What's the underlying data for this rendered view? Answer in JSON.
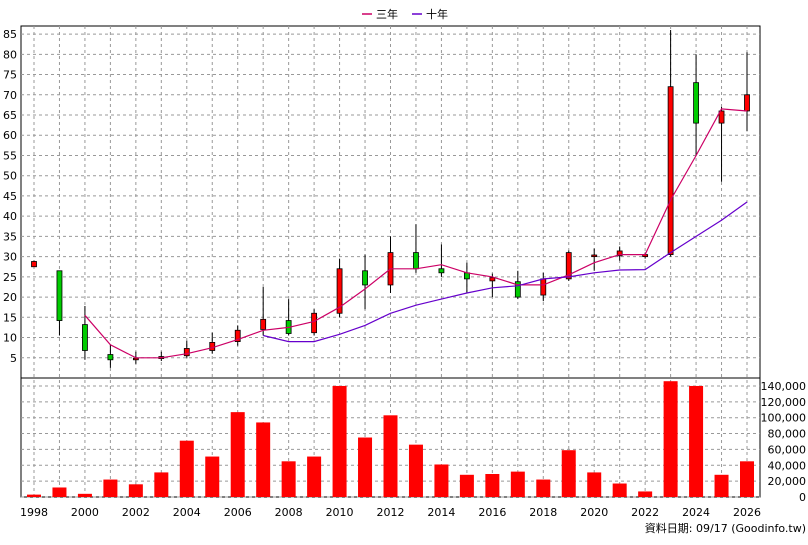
{
  "chart_data": {
    "type": "candlestick",
    "legend": [
      {
        "name": "三年",
        "color": "#cc0066"
      },
      {
        "name": "十年",
        "color": "#6600cc"
      }
    ],
    "legend_position": "top-center",
    "grid": true,
    "price_axis": {
      "ylim": [
        0,
        87
      ],
      "ticks": [
        "5",
        "10",
        "15",
        "20",
        "25",
        "30",
        "35",
        "40",
        "45",
        "50",
        "55",
        "60",
        "65",
        "70",
        "75",
        "80",
        "85"
      ]
    },
    "volume_axis": {
      "ylim": [
        0,
        145000
      ],
      "ticks": [
        "0",
        "20,000",
        "40,000",
        "60,000",
        "80,000",
        "100,000",
        "120,000",
        "140,000"
      ]
    },
    "x_ticks": [
      "1998",
      "2000",
      "2002",
      "2004",
      "2006",
      "2008",
      "2010",
      "2012",
      "2014",
      "2016",
      "2018",
      "2020",
      "2022",
      "2024",
      "2026"
    ],
    "x_range": [
      1998,
      2026
    ],
    "up_color": "#ff0000",
    "down_color": "#00cc00",
    "volume_color": "#ff0000",
    "candles": [
      {
        "year": 1998,
        "open": 27.5,
        "close": 28.8,
        "high": 29,
        "low": 27.5
      },
      {
        "year": 1999,
        "open": 26.5,
        "close": 14.2,
        "high": 26.5,
        "low": 10.5
      },
      {
        "year": 2000,
        "open": 13.2,
        "close": 6.8,
        "high": 17.8,
        "low": 4.5
      },
      {
        "year": 2001,
        "open": 5.8,
        "close": 4.5,
        "high": 8.2,
        "low": 2.5
      },
      {
        "year": 2002,
        "open": 4.5,
        "close": 4.9,
        "high": 6.5,
        "low": 3.5
      },
      {
        "year": 2003,
        "open": 4.8,
        "close": 5.3,
        "high": 6.5,
        "low": 4.2
      },
      {
        "year": 2004,
        "open": 5.5,
        "close": 7.3,
        "high": 9.2,
        "low": 5.0
      },
      {
        "year": 2005,
        "open": 6.8,
        "close": 8.8,
        "high": 11.2,
        "low": 6.0
      },
      {
        "year": 2006,
        "open": 9.0,
        "close": 11.8,
        "high": 13.0,
        "low": 8.0
      },
      {
        "year": 2007,
        "open": 12.0,
        "close": 14.5,
        "high": 22.5,
        "low": 10.5
      },
      {
        "year": 2008,
        "open": 14.2,
        "close": 11.0,
        "high": 19.5,
        "low": 10.5
      },
      {
        "year": 2009,
        "open": 11.2,
        "close": 16.0,
        "high": 17.0,
        "low": 10.5
      },
      {
        "year": 2010,
        "open": 16.0,
        "close": 27.0,
        "high": 29.5,
        "low": 15.0
      },
      {
        "year": 2011,
        "open": 26.5,
        "close": 23.0,
        "high": 30.5,
        "low": 17.0
      },
      {
        "year": 2012,
        "open": 23.0,
        "close": 31.0,
        "high": 35.0,
        "low": 21.0
      },
      {
        "year": 2013,
        "open": 31.0,
        "close": 27.0,
        "high": 38.0,
        "low": 26.0
      },
      {
        "year": 2014,
        "open": 27.0,
        "close": 26.0,
        "high": 33.0,
        "low": 25.0
      },
      {
        "year": 2015,
        "open": 26.0,
        "close": 24.5,
        "high": 28.5,
        "low": 21.0
      },
      {
        "year": 2016,
        "open": 24.0,
        "close": 24.8,
        "high": 25.8,
        "low": 20.0
      },
      {
        "year": 2017,
        "open": 23.8,
        "close": 20.0,
        "high": 26.5,
        "low": 19.5
      },
      {
        "year": 2018,
        "open": 20.5,
        "close": 24.5,
        "high": 26.0,
        "low": 19.0
      },
      {
        "year": 2019,
        "open": 24.5,
        "close": 31.0,
        "high": 31.5,
        "low": 24.0
      },
      {
        "year": 2020,
        "open": 30.0,
        "close": 30.4,
        "high": 32.0,
        "low": 26.5
      },
      {
        "year": 2021,
        "open": 30.2,
        "close": 31.4,
        "high": 32.5,
        "low": 29.0
      },
      {
        "year": 2022,
        "open": 30.0,
        "close": 30.5,
        "high": 31.0,
        "low": 29.5
      },
      {
        "year": 2023,
        "open": 30.5,
        "close": 72.0,
        "high": 86.0,
        "low": 30.0
      },
      {
        "year": 2024,
        "open": 73.0,
        "close": 63.0,
        "high": 80.0,
        "low": 55.0
      },
      {
        "year": 2025,
        "open": 63.0,
        "close": 66.0,
        "high": 67.0,
        "low": 48.5
      },
      {
        "year": 2026,
        "open": 66.0,
        "close": 70.0,
        "high": 80.5,
        "low": 61.0
      }
    ],
    "ma3": [
      {
        "year": 2000,
        "value": 15.5
      },
      {
        "year": 2001,
        "value": 8.2
      },
      {
        "year": 2002,
        "value": 5.0
      },
      {
        "year": 2003,
        "value": 5.0
      },
      {
        "year": 2004,
        "value": 6.0
      },
      {
        "year": 2005,
        "value": 7.5
      },
      {
        "year": 2006,
        "value": 9.5
      },
      {
        "year": 2007,
        "value": 11.8
      },
      {
        "year": 2008,
        "value": 12.5
      },
      {
        "year": 2009,
        "value": 14.0
      },
      {
        "year": 2010,
        "value": 17.5
      },
      {
        "year": 2011,
        "value": 22.0
      },
      {
        "year": 2012,
        "value": 27.0
      },
      {
        "year": 2013,
        "value": 27.0
      },
      {
        "year": 2014,
        "value": 28.0
      },
      {
        "year": 2015,
        "value": 26.0
      },
      {
        "year": 2016,
        "value": 25.0
      },
      {
        "year": 2017,
        "value": 23.0
      },
      {
        "year": 2018,
        "value": 23.0
      },
      {
        "year": 2019,
        "value": 25.5
      },
      {
        "year": 2020,
        "value": 28.5
      },
      {
        "year": 2021,
        "value": 30.5
      },
      {
        "year": 2022,
        "value": 30.5
      },
      {
        "year": 2023,
        "value": 44.0
      },
      {
        "year": 2024,
        "value": 55.0
      },
      {
        "year": 2025,
        "value": 66.5
      },
      {
        "year": 2026,
        "value": 66.0
      }
    ],
    "ma10": [
      {
        "year": 2007,
        "value": 10.5
      },
      {
        "year": 2008,
        "value": 9.0
      },
      {
        "year": 2009,
        "value": 9.0
      },
      {
        "year": 2010,
        "value": 10.8
      },
      {
        "year": 2011,
        "value": 13.0
      },
      {
        "year": 2012,
        "value": 16.0
      },
      {
        "year": 2013,
        "value": 18.0
      },
      {
        "year": 2014,
        "value": 19.5
      },
      {
        "year": 2015,
        "value": 21.0
      },
      {
        "year": 2016,
        "value": 22.3
      },
      {
        "year": 2017,
        "value": 22.8
      },
      {
        "year": 2018,
        "value": 24.5
      },
      {
        "year": 2019,
        "value": 25.0
      },
      {
        "year": 2020,
        "value": 26.0
      },
      {
        "year": 2021,
        "value": 26.7
      },
      {
        "year": 2022,
        "value": 26.8
      },
      {
        "year": 2023,
        "value": 31.0
      },
      {
        "year": 2024,
        "value": 35.0
      },
      {
        "year": 2025,
        "value": 39.0
      },
      {
        "year": 2026,
        "value": 43.5
      }
    ],
    "volumes": [
      {
        "year": 1998,
        "value": 3000
      },
      {
        "year": 1999,
        "value": 12000
      },
      {
        "year": 2000,
        "value": 4000
      },
      {
        "year": 2001,
        "value": 22000
      },
      {
        "year": 2002,
        "value": 16000
      },
      {
        "year": 2003,
        "value": 31000
      },
      {
        "year": 2004,
        "value": 71000
      },
      {
        "year": 2005,
        "value": 51000
      },
      {
        "year": 2006,
        "value": 107000
      },
      {
        "year": 2007,
        "value": 94000
      },
      {
        "year": 2008,
        "value": 45000
      },
      {
        "year": 2009,
        "value": 51000
      },
      {
        "year": 2010,
        "value": 140000
      },
      {
        "year": 2011,
        "value": 75000
      },
      {
        "year": 2012,
        "value": 103000
      },
      {
        "year": 2013,
        "value": 66000
      },
      {
        "year": 2014,
        "value": 41000
      },
      {
        "year": 2015,
        "value": 28000
      },
      {
        "year": 2016,
        "value": 29000
      },
      {
        "year": 2017,
        "value": 32000
      },
      {
        "year": 2018,
        "value": 22000
      },
      {
        "year": 2019,
        "value": 59000
      },
      {
        "year": 2020,
        "value": 31000
      },
      {
        "year": 2021,
        "value": 17000
      },
      {
        "year": 2022,
        "value": 7000
      },
      {
        "year": 2023,
        "value": 146000
      },
      {
        "year": 2024,
        "value": 140000
      },
      {
        "year": 2025,
        "value": 28000
      },
      {
        "year": 2026,
        "value": 45000
      }
    ],
    "footer": "資料日期: 09/17  (Goodinfo.tw)"
  }
}
